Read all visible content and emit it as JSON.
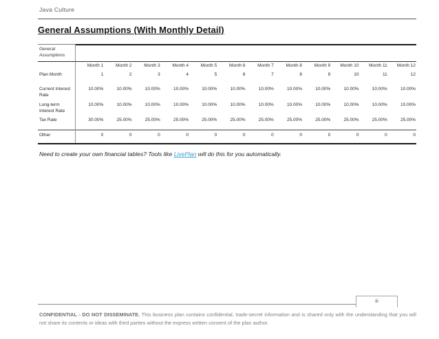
{
  "page": {
    "company": "Java Culture",
    "title": "General Assumptions (With Monthly Detail)",
    "page_number": "iii"
  },
  "table": {
    "corner_label": "General Assumptions",
    "columns": [
      "Month 1",
      "Month 2",
      "Month 3",
      "Month 4",
      "Month 5",
      "Month 6",
      "Month 7",
      "Month 8",
      "Month 9",
      "Month 10",
      "Month 11",
      "Month 12"
    ],
    "rows": [
      {
        "label": "Plan Month",
        "values": [
          "1",
          "2",
          "3",
          "4",
          "5",
          "6",
          "7",
          "8",
          "9",
          "10",
          "11",
          "12"
        ]
      },
      {
        "label": "Current Interest Rate",
        "values": [
          "10.00%",
          "10.00%",
          "10.00%",
          "10.00%",
          "10.00%",
          "10.00%",
          "10.00%",
          "10.00%",
          "10.00%",
          "10.00%",
          "10.00%",
          "10.00%"
        ]
      },
      {
        "label": "Long-term Interest Rate",
        "values": [
          "10.00%",
          "10.00%",
          "10.00%",
          "10.00%",
          "10.00%",
          "10.00%",
          "10.00%",
          "10.00%",
          "10.00%",
          "10.00%",
          "10.00%",
          "10.00%"
        ]
      },
      {
        "label": "Tax Rate",
        "values": [
          "30.00%",
          "25.00%",
          "25.00%",
          "25.00%",
          "25.00%",
          "25.00%",
          "25.00%",
          "25.00%",
          "25.00%",
          "25.00%",
          "25.00%",
          "25.00%"
        ]
      },
      {
        "label": "Other",
        "values": [
          "0",
          "0",
          "0",
          "0",
          "0",
          "0",
          "0",
          "0",
          "0",
          "0",
          "0",
          "0"
        ]
      }
    ]
  },
  "note": {
    "before_link": "Need to create your own financial tables? Tools like ",
    "link": "LivePlan",
    "after_link": " will do this for you automatically."
  },
  "footer": {
    "confidential_bold": "CONFIDENTIAL - DO NOT DISSEMINATE.",
    "confidential_text": " This business plan contains confidential, trade-secret information and is shared only with the understanding that you will not share its contents or ideas with third parties without the express written consent of the plan author."
  },
  "colors": {
    "link": "#3a9bd5",
    "muted_text": "#7f7f7f",
    "header_text": "#595959"
  }
}
